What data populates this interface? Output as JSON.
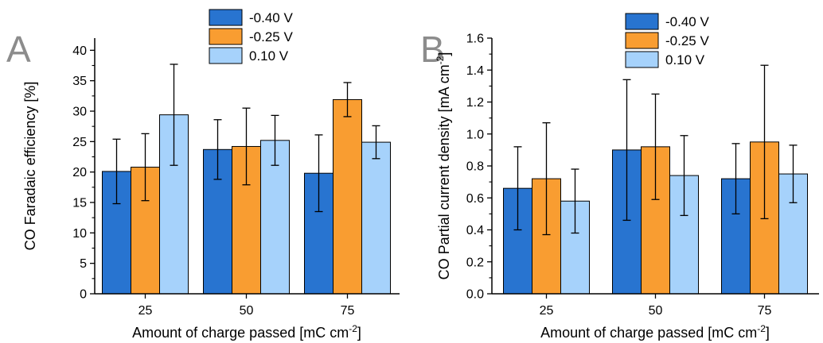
{
  "chart_data": [
    {
      "panel_letter": "A",
      "type": "bar",
      "categories": [
        "25",
        "50",
        "75"
      ],
      "xlabel": "Amount of charge passed [mC cm",
      "xlabel_sup": "-2",
      "xlabel_end": "]",
      "ylabel": "CO Faradaic efficiency [%]",
      "ylim": [
        0,
        42
      ],
      "yticks": [
        0,
        5,
        10,
        15,
        20,
        25,
        30,
        35,
        40
      ],
      "tick_decimals": 0,
      "legend_position": "top-center",
      "series": [
        {
          "name": "-0.40 V",
          "values": [
            20.1,
            23.7,
            19.8
          ],
          "errors": [
            5.3,
            4.9,
            6.3
          ],
          "color": "#2874d0"
        },
        {
          "name": "-0.25 V",
          "values": [
            20.8,
            24.2,
            31.9
          ],
          "errors": [
            5.5,
            6.3,
            2.8
          ],
          "color": "#f99d31"
        },
        {
          "name": "0.10 V",
          "values": [
            29.4,
            25.2,
            24.9
          ],
          "errors": [
            8.3,
            4.1,
            2.7
          ],
          "color": "#a6d2fb"
        }
      ]
    },
    {
      "panel_letter": "B",
      "type": "bar",
      "categories": [
        "25",
        "50",
        "75"
      ],
      "xlabel": "Amount of charge passed [mC cm",
      "xlabel_sup": "-2",
      "xlabel_end": "]",
      "ylabel": "CO Partial current density [mA cm",
      "ylabel_sup": "-2",
      "ylabel_end": "]",
      "ylim": [
        0,
        1.6
      ],
      "yticks": [
        0,
        0.2,
        0.4,
        0.6,
        0.8,
        1.0,
        1.2,
        1.4,
        1.6
      ],
      "tick_decimals": 1,
      "legend_position": "top-center",
      "series": [
        {
          "name": "-0.40 V",
          "values": [
            0.66,
            0.9,
            0.72
          ],
          "errors": [
            0.26,
            0.44,
            0.22
          ],
          "color": "#2874d0"
        },
        {
          "name": "-0.25 V",
          "values": [
            0.72,
            0.92,
            0.95
          ],
          "errors": [
            0.35,
            0.33,
            0.48
          ],
          "color": "#f99d31"
        },
        {
          "name": "0.10 V",
          "values": [
            0.58,
            0.74,
            0.75
          ],
          "errors": [
            0.2,
            0.25,
            0.18
          ],
          "color": "#a6d2fb"
        }
      ]
    }
  ]
}
